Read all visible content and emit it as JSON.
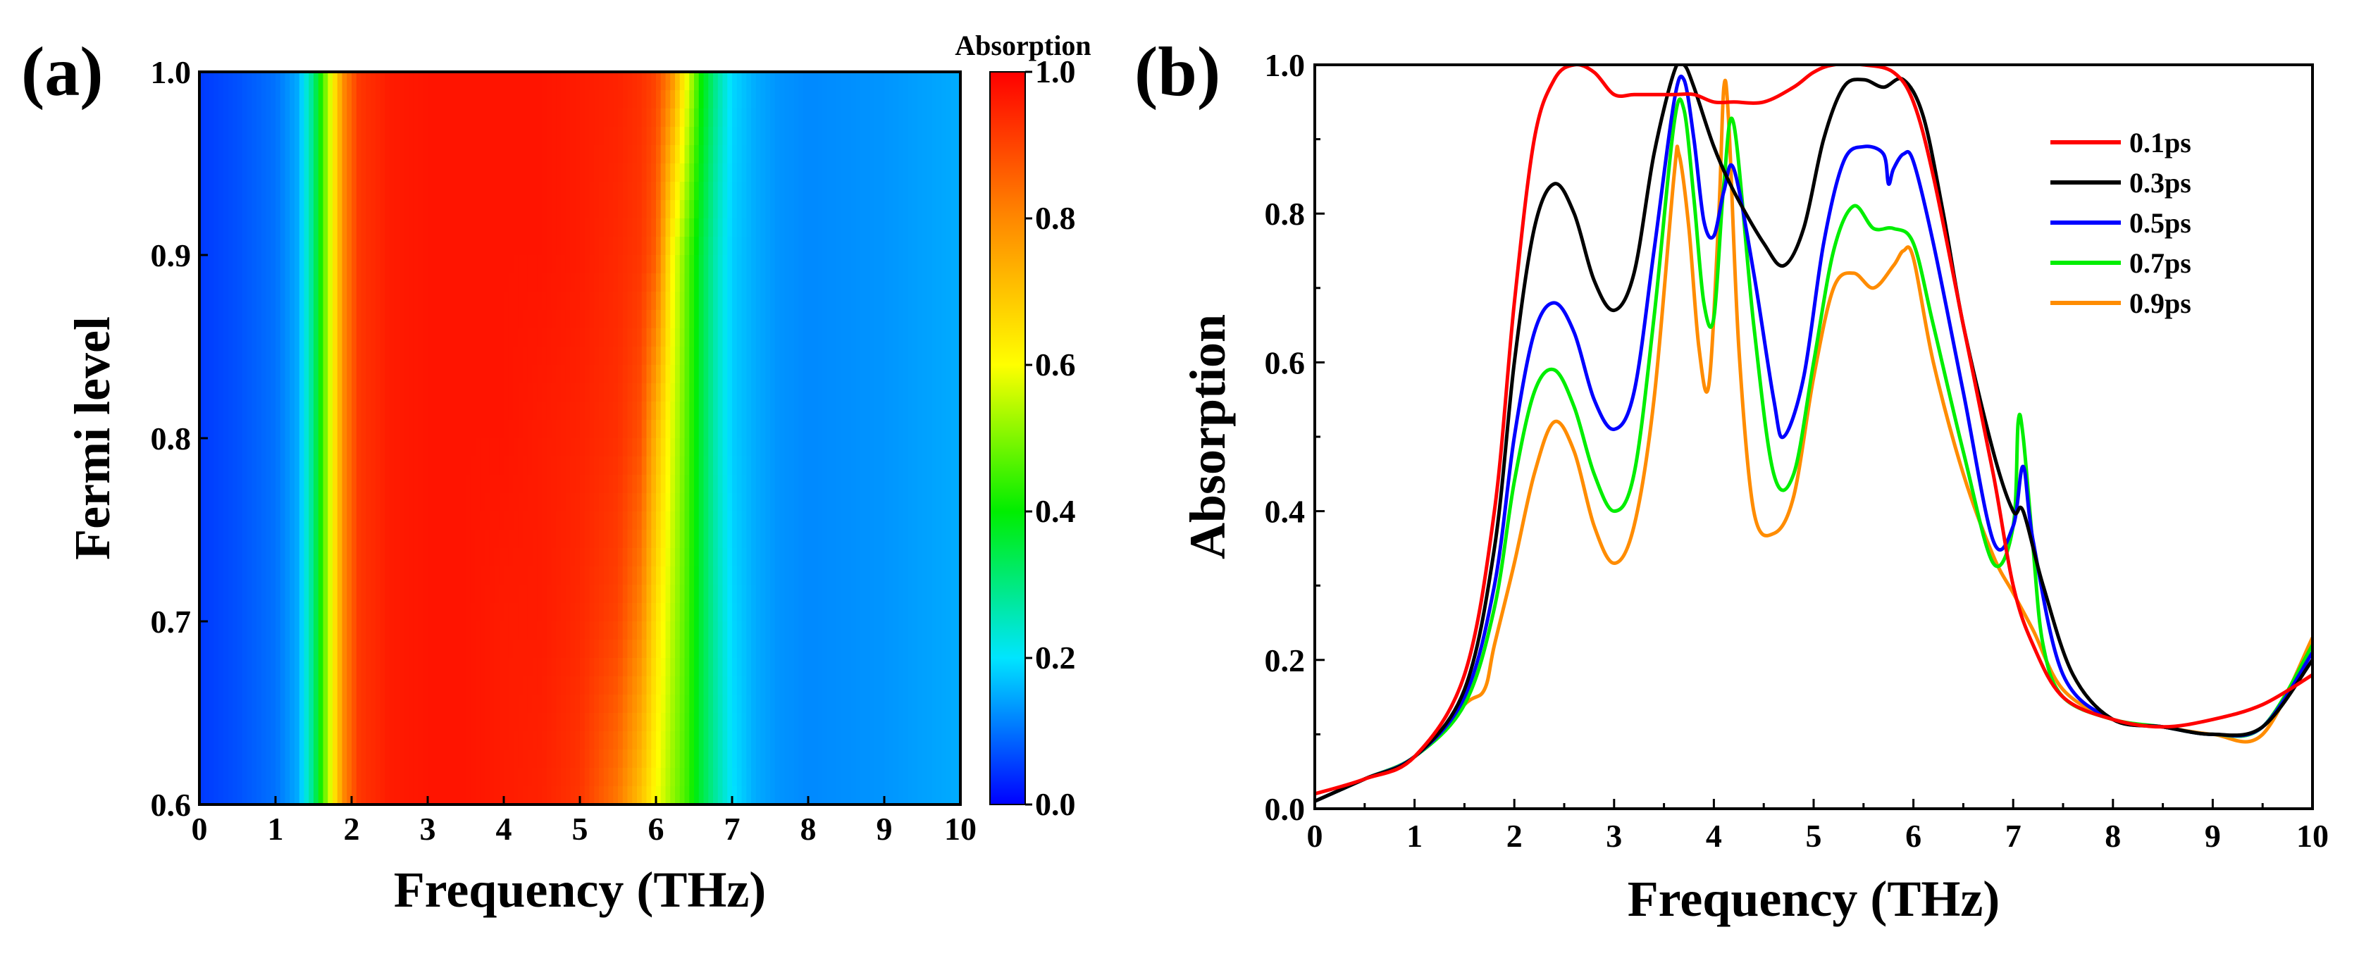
{
  "chart_data": [
    {
      "panel": "(a)",
      "type": "heatmap",
      "xlabel": "Frequency (THz)",
      "ylabel": "Fermi level",
      "xlim": [
        0,
        10
      ],
      "ylim": [
        0.6,
        1.0
      ],
      "xticks": [
        "0",
        "1",
        "2",
        "3",
        "4",
        "5",
        "6",
        "7",
        "8",
        "9",
        "10"
      ],
      "yticks": [
        "0.6",
        "0.7",
        "0.8",
        "0.9",
        "1.0"
      ],
      "colorbar": {
        "title": "Absorption",
        "range": [
          0.0,
          1.0
        ],
        "ticks": [
          "0.0",
          "0.2",
          "0.4",
          "0.6",
          "0.8",
          "1.0"
        ],
        "colormap": [
          "#0000ff",
          "#00e5ff",
          "#00ee00",
          "#ffff00",
          "#ff8800",
          "#ff0000"
        ]
      },
      "x": [
        0,
        0.5,
        1.0,
        1.3,
        1.5,
        1.7,
        1.9,
        2.1,
        2.5,
        3.0,
        3.5,
        4.0,
        4.5,
        5.0,
        5.5,
        5.8,
        6.0,
        6.2,
        6.4,
        6.6,
        6.8,
        7.0,
        7.3,
        7.6,
        8.0,
        9.0,
        10.0
      ],
      "y": [
        0.6,
        0.7,
        0.8,
        0.9,
        1.0
      ],
      "z": [
        [
          0.05,
          0.07,
          0.1,
          0.15,
          0.3,
          0.55,
          0.8,
          0.92,
          0.96,
          0.97,
          0.97,
          0.96,
          0.95,
          0.92,
          0.82,
          0.7,
          0.6,
          0.52,
          0.45,
          0.35,
          0.27,
          0.2,
          0.15,
          0.13,
          0.12,
          0.13,
          0.15
        ],
        [
          0.05,
          0.07,
          0.1,
          0.15,
          0.3,
          0.55,
          0.8,
          0.92,
          0.96,
          0.97,
          0.97,
          0.96,
          0.96,
          0.94,
          0.9,
          0.8,
          0.65,
          0.55,
          0.46,
          0.35,
          0.26,
          0.19,
          0.15,
          0.13,
          0.12,
          0.13,
          0.15
        ],
        [
          0.05,
          0.07,
          0.1,
          0.15,
          0.3,
          0.55,
          0.8,
          0.92,
          0.96,
          0.97,
          0.97,
          0.97,
          0.96,
          0.95,
          0.93,
          0.88,
          0.72,
          0.58,
          0.47,
          0.35,
          0.25,
          0.18,
          0.15,
          0.13,
          0.12,
          0.13,
          0.15
        ],
        [
          0.05,
          0.07,
          0.1,
          0.15,
          0.3,
          0.55,
          0.8,
          0.92,
          0.96,
          0.97,
          0.97,
          0.97,
          0.97,
          0.96,
          0.94,
          0.92,
          0.86,
          0.62,
          0.48,
          0.35,
          0.25,
          0.18,
          0.15,
          0.13,
          0.12,
          0.13,
          0.15
        ],
        [
          0.05,
          0.07,
          0.1,
          0.15,
          0.3,
          0.55,
          0.8,
          0.92,
          0.96,
          0.97,
          0.97,
          0.97,
          0.97,
          0.96,
          0.95,
          0.93,
          0.9,
          0.8,
          0.6,
          0.4,
          0.28,
          0.19,
          0.15,
          0.13,
          0.12,
          0.13,
          0.15
        ]
      ]
    },
    {
      "panel": "(b)",
      "type": "line",
      "xlabel": "Frequency (THz)",
      "ylabel": "Absorption",
      "xlim": [
        0,
        10
      ],
      "ylim": [
        0.0,
        1.0
      ],
      "xticks": [
        "0",
        "1",
        "2",
        "3",
        "4",
        "5",
        "6",
        "7",
        "8",
        "9",
        "10"
      ],
      "yticks": [
        "0.0",
        "0.2",
        "0.4",
        "0.6",
        "0.8",
        "1.0"
      ],
      "legend_position": "top-right",
      "series": [
        {
          "name": "0.1ps",
          "color": "#ff0000",
          "x": [
            0,
            0.5,
            1.0,
            1.5,
            1.8,
            2.0,
            2.2,
            2.4,
            2.6,
            2.8,
            3.0,
            3.2,
            3.4,
            3.6,
            3.8,
            4.0,
            4.2,
            4.5,
            4.8,
            5.0,
            5.2,
            5.5,
            5.8,
            6.0,
            6.2,
            6.5,
            6.8,
            7.0,
            7.2,
            7.5,
            8.0,
            8.5,
            9.0,
            9.5,
            10.0
          ],
          "y": [
            0.02,
            0.04,
            0.07,
            0.18,
            0.4,
            0.68,
            0.9,
            0.98,
            1.0,
            0.99,
            0.96,
            0.96,
            0.96,
            0.96,
            0.96,
            0.95,
            0.95,
            0.95,
            0.97,
            0.99,
            1.0,
            1.0,
            0.99,
            0.95,
            0.85,
            0.65,
            0.45,
            0.3,
            0.22,
            0.15,
            0.12,
            0.11,
            0.12,
            0.14,
            0.18
          ]
        },
        {
          "name": "0.3ps",
          "color": "#000000",
          "x": [
            0,
            0.5,
            1.0,
            1.5,
            1.8,
            2.0,
            2.2,
            2.4,
            2.6,
            2.8,
            3.0,
            3.2,
            3.4,
            3.6,
            3.7,
            3.8,
            4.0,
            4.2,
            4.5,
            4.7,
            4.9,
            5.1,
            5.3,
            5.5,
            5.7,
            5.9,
            6.1,
            6.3,
            6.5,
            6.8,
            7.0,
            7.1,
            7.3,
            7.6,
            8.0,
            8.5,
            9.0,
            9.5,
            10.0
          ],
          "y": [
            0.01,
            0.04,
            0.07,
            0.16,
            0.35,
            0.6,
            0.78,
            0.84,
            0.8,
            0.71,
            0.67,
            0.72,
            0.88,
            0.99,
            1.0,
            0.97,
            0.89,
            0.83,
            0.76,
            0.73,
            0.78,
            0.9,
            0.97,
            0.98,
            0.97,
            0.98,
            0.93,
            0.8,
            0.65,
            0.48,
            0.4,
            0.4,
            0.3,
            0.18,
            0.12,
            0.11,
            0.1,
            0.11,
            0.2
          ]
        },
        {
          "name": "0.5ps",
          "color": "#0000ff",
          "x": [
            0,
            0.5,
            1.0,
            1.5,
            1.8,
            2.0,
            2.2,
            2.4,
            2.6,
            2.8,
            3.0,
            3.2,
            3.4,
            3.6,
            3.7,
            3.8,
            3.9,
            4.0,
            4.1,
            4.2,
            4.4,
            4.6,
            4.7,
            4.9,
            5.1,
            5.3,
            5.5,
            5.7,
            5.75,
            5.8,
            5.9,
            6.0,
            6.2,
            6.5,
            6.8,
            7.0,
            7.1,
            7.2,
            7.5,
            8.0,
            8.5,
            9.0,
            9.5,
            10.0
          ],
          "y": [
            0.01,
            0.04,
            0.07,
            0.15,
            0.3,
            0.5,
            0.64,
            0.68,
            0.64,
            0.55,
            0.51,
            0.56,
            0.75,
            0.95,
            0.98,
            0.9,
            0.79,
            0.77,
            0.83,
            0.86,
            0.72,
            0.55,
            0.5,
            0.58,
            0.76,
            0.87,
            0.89,
            0.88,
            0.84,
            0.86,
            0.88,
            0.87,
            0.76,
            0.56,
            0.36,
            0.38,
            0.46,
            0.36,
            0.18,
            0.12,
            0.11,
            0.1,
            0.11,
            0.21
          ]
        },
        {
          "name": "0.7ps",
          "color": "#00ee00",
          "x": [
            0,
            0.5,
            1.0,
            1.5,
            1.8,
            2.0,
            2.2,
            2.4,
            2.6,
            2.8,
            3.0,
            3.2,
            3.4,
            3.6,
            3.7,
            3.8,
            3.9,
            4.0,
            4.1,
            4.2,
            4.4,
            4.6,
            4.8,
            5.0,
            5.2,
            5.4,
            5.6,
            5.8,
            6.0,
            6.2,
            6.5,
            6.8,
            7.0,
            7.05,
            7.1,
            7.2,
            7.3,
            7.5,
            8.0,
            8.5,
            9.0,
            9.5,
            10.0
          ],
          "y": [
            0.01,
            0.04,
            0.07,
            0.14,
            0.27,
            0.44,
            0.56,
            0.59,
            0.54,
            0.45,
            0.4,
            0.45,
            0.66,
            0.92,
            0.94,
            0.82,
            0.68,
            0.66,
            0.84,
            0.92,
            0.65,
            0.45,
            0.45,
            0.6,
            0.75,
            0.81,
            0.78,
            0.78,
            0.76,
            0.65,
            0.48,
            0.33,
            0.38,
            0.52,
            0.5,
            0.35,
            0.22,
            0.15,
            0.12,
            0.11,
            0.1,
            0.11,
            0.22
          ]
        },
        {
          "name": "0.9ps",
          "color": "#ff8c00",
          "x": [
            0,
            0.5,
            1.0,
            1.5,
            1.7,
            1.8,
            2.0,
            2.2,
            2.4,
            2.6,
            2.8,
            3.0,
            3.2,
            3.4,
            3.6,
            3.65,
            3.75,
            3.85,
            3.95,
            4.05,
            4.1,
            4.15,
            4.25,
            4.4,
            4.6,
            4.8,
            5.0,
            5.2,
            5.4,
            5.6,
            5.8,
            5.9,
            6.0,
            6.2,
            6.5,
            6.8,
            7.0,
            7.2,
            7.5,
            8.0,
            8.5,
            9.0,
            9.5,
            10.0
          ],
          "y": [
            0.01,
            0.04,
            0.07,
            0.14,
            0.16,
            0.22,
            0.33,
            0.45,
            0.52,
            0.48,
            0.38,
            0.33,
            0.38,
            0.55,
            0.85,
            0.88,
            0.78,
            0.62,
            0.57,
            0.8,
            0.97,
            0.92,
            0.62,
            0.4,
            0.37,
            0.42,
            0.58,
            0.7,
            0.72,
            0.7,
            0.73,
            0.75,
            0.74,
            0.6,
            0.45,
            0.34,
            0.29,
            0.24,
            0.16,
            0.12,
            0.11,
            0.1,
            0.1,
            0.23
          ]
        }
      ]
    }
  ]
}
